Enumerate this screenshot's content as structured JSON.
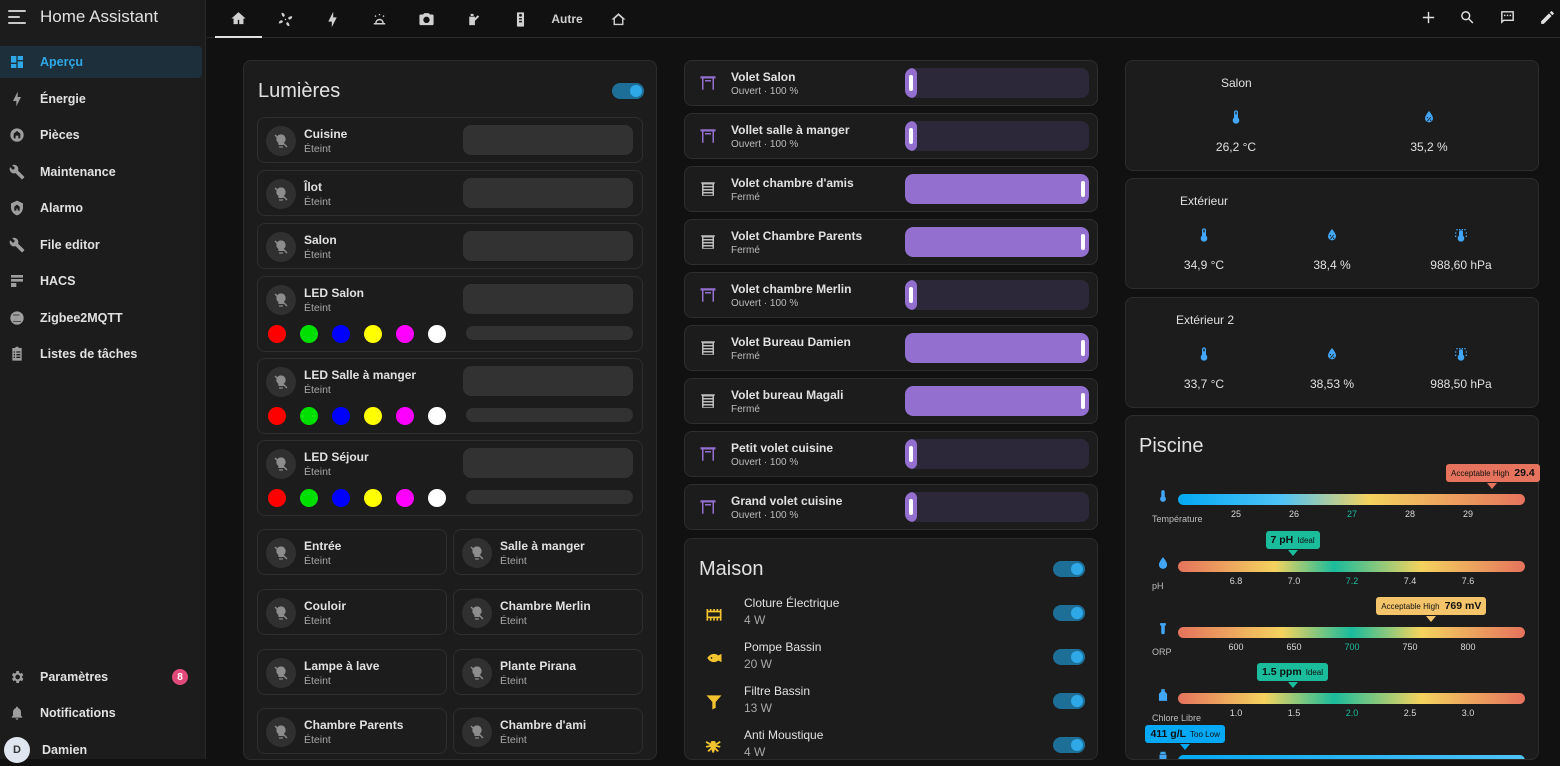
{
  "app": {
    "title": "Home Assistant"
  },
  "sidebar": {
    "items": [
      {
        "label": "Aperçu",
        "icon": "dashboard-icon"
      },
      {
        "label": "Énergie",
        "icon": "lightning-icon"
      },
      {
        "label": "Pièces",
        "icon": "home-area-icon"
      },
      {
        "label": "Maintenance",
        "icon": "wrench-icon"
      },
      {
        "label": "Alarmo",
        "icon": "shield-home-icon"
      },
      {
        "label": "File editor",
        "icon": "wrench-icon"
      },
      {
        "label": "HACS",
        "icon": "hacs-icon"
      },
      {
        "label": "Zigbee2MQTT",
        "icon": "zigbee-icon"
      },
      {
        "label": "Listes de tâches",
        "icon": "clipboard-list-icon"
      }
    ],
    "settings_label": "Paramètres",
    "settings_badge": "8",
    "notifications_label": "Notifications",
    "user_initial": "D",
    "user_name": "Damien"
  },
  "topbar": {
    "tabs": [
      "home-icon",
      "fan-icon",
      "lightning-icon",
      "weather-icon",
      "camera-icon",
      "watering-can-icon",
      "remote-icon",
      "Autre",
      "house-outline-icon"
    ],
    "actions": [
      "plus-icon",
      "search-icon",
      "assist-icon",
      "pencil-icon"
    ]
  },
  "lights": {
    "title": "Lumières",
    "tiles": [
      {
        "name": "Cuisine",
        "state": "Éteint"
      },
      {
        "name": "Îlot",
        "state": "Éteint"
      },
      {
        "name": "Salon",
        "state": "Éteint"
      },
      {
        "name": "LED Salon",
        "state": "Éteint"
      },
      {
        "name": "LED Salle à manger",
        "state": "Éteint"
      },
      {
        "name": "LED Séjour",
        "state": "Éteint"
      }
    ],
    "small": [
      {
        "name": "Entrée",
        "state": "Éteint"
      },
      {
        "name": "Salle à manger",
        "state": "Éteint"
      },
      {
        "name": "Couloir",
        "state": "Éteint"
      },
      {
        "name": "Chambre Merlin",
        "state": "Éteint"
      },
      {
        "name": "Lampe à lave",
        "state": "Éteint"
      },
      {
        "name": "Plante Pirana",
        "state": "Éteint"
      },
      {
        "name": "Chambre Parents",
        "state": "Éteint"
      },
      {
        "name": "Chambre d'ami",
        "state": "Éteint"
      }
    ],
    "colors": [
      "#ff0000",
      "#00e000",
      "#0000ff",
      "#ffff00",
      "#ff00ff",
      "#ffffff"
    ]
  },
  "covers": [
    {
      "name": "Volet Salon",
      "state": "Ouvert · 100 %",
      "closed": false
    },
    {
      "name": "Vollet salle à manger",
      "state": "Ouvert · 100 %",
      "closed": false
    },
    {
      "name": "Volet chambre d'amis",
      "state": "Fermé",
      "closed": true
    },
    {
      "name": "Volet Chambre Parents",
      "state": "Fermé",
      "closed": true
    },
    {
      "name": "Volet chambre Merlin",
      "state": "Ouvert · 100 %",
      "closed": false
    },
    {
      "name": "Volet Bureau Damien",
      "state": "Fermé",
      "closed": true
    },
    {
      "name": "Volet bureau Magali",
      "state": "Fermé",
      "closed": true
    },
    {
      "name": "Petit volet cuisine",
      "state": "Ouvert · 100 %",
      "closed": false
    },
    {
      "name": "Grand volet cuisine",
      "state": "Ouvert · 100 %",
      "closed": false
    }
  ],
  "maison": {
    "title": "Maison",
    "rows": [
      {
        "name": "Cloture Électrique",
        "value": "4 W",
        "icon": "fence-electric-icon"
      },
      {
        "name": "Pompe Bassin",
        "value": "20 W",
        "icon": "fish-icon"
      },
      {
        "name": "Filtre Bassin",
        "value": "13 W",
        "icon": "filter-icon"
      },
      {
        "name": "Anti Moustique",
        "value": "4 W",
        "icon": "mosquito-icon"
      }
    ]
  },
  "sensors": [
    {
      "title": "Salon",
      "values": [
        "26,2 °C",
        "35,2 %"
      ],
      "icons": [
        "thermometer-icon",
        "water-percent-icon"
      ]
    },
    {
      "title": "Extérieur",
      "values": [
        "34,9 °C",
        "38,4 %",
        "988,60 hPa"
      ],
      "icons": [
        "thermometer-icon",
        "water-percent-icon",
        "gauge-icon"
      ]
    },
    {
      "title": "Extérieur 2",
      "values": [
        "33,7 °C",
        "38,53 %",
        "988,50 hPa"
      ],
      "icons": [
        "thermometer-icon",
        "water-percent-icon",
        "gauge-icon"
      ]
    }
  ],
  "piscine": {
    "title": "Piscine",
    "gauges": [
      {
        "label": "Température",
        "icon": "thermometer-icon",
        "ticks": [
          "25",
          "26",
          "27",
          "28",
          "29"
        ],
        "pill_prefix": "Acceptable High",
        "pill_value": "29.4",
        "pill_suffix": "",
        "pill_color": "#e5735d",
        "position": 0.905,
        "gradient": "linear-gradient(90deg,#03a9f4,#4fc3f7 30%,#f4d35e 55%,#e5735d)"
      },
      {
        "label": "pH",
        "icon": "ph-icon",
        "ticks": [
          "6.8",
          "7.0",
          "7.2",
          "7.4",
          "7.6"
        ],
        "pill_prefix": "",
        "pill_value": "7 pH",
        "pill_suffix": "Ideal",
        "pill_color": "#1abc9c",
        "position": 0.33,
        "gradient": "linear-gradient(90deg,#e5735d,#f4d35e 28%,#1abc9c 45%,#f4d35e 70%,#e5735d)"
      },
      {
        "label": "ORP",
        "icon": "orp-icon",
        "ticks": [
          "600",
          "650",
          "700",
          "750",
          "800"
        ],
        "pill_prefix": "Acceptable High",
        "pill_value": "769 mV",
        "pill_suffix": "",
        "pill_color": "#f4c46a",
        "position": 0.73,
        "gradient": "linear-gradient(90deg,#e5735d,#f4d35e 30%,#1abc9c 50%,#f4d35e 70%,#e5735d)"
      },
      {
        "label": "Chlore Libre",
        "icon": "chlorine-icon",
        "ticks": [
          "1.0",
          "1.5",
          "2.0",
          "2.5",
          "3.0"
        ],
        "pill_prefix": "",
        "pill_value": "1.5 ppm",
        "pill_suffix": "Ideal",
        "pill_color": "#1abc9c",
        "position": 0.33,
        "gradient": "linear-gradient(90deg,#e5735d,#f4d35e 25%,#1abc9c 45%,#f4d35e 70%,#e5735d)"
      },
      {
        "label": "",
        "icon": "salt-icon",
        "ticks": [],
        "pill_prefix": "",
        "pill_value": "411 g/L",
        "pill_suffix": "Too Low",
        "pill_color": "#03a9f4",
        "position": 0.02,
        "gradient": "linear-gradient(90deg,#03a9f4,#4fc3f7)"
      }
    ]
  }
}
